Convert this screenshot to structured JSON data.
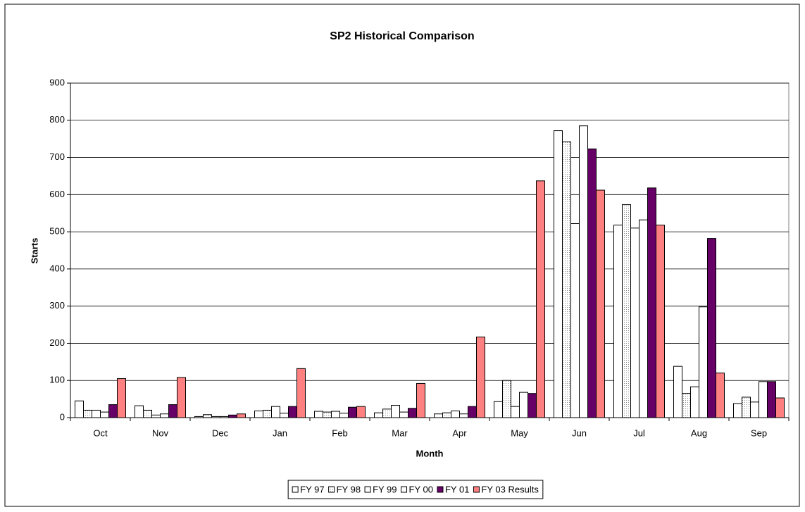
{
  "chart_data": {
    "type": "bar",
    "title": "SP2 Historical Comparison",
    "x_label": "Month",
    "y_label": "Starts",
    "categories": [
      "Oct",
      "Nov",
      "Dec",
      "Jan",
      "Feb",
      "Mar",
      "Apr",
      "May",
      "Jun",
      "Jul",
      "Aug",
      "Sep"
    ],
    "series": [
      {
        "name": "FY 97",
        "color": "#ffffff",
        "values": [
          45,
          32,
          3,
          18,
          17,
          13,
          10,
          43,
          772,
          518,
          138,
          38
        ]
      },
      {
        "name": "FY 98",
        "color": "#ffffff",
        "pattern": "dots",
        "values": [
          20,
          20,
          8,
          20,
          15,
          23,
          13,
          100,
          742,
          573,
          65,
          55
        ]
      },
      {
        "name": "FY 99",
        "color": "#ffffff",
        "values": [
          20,
          7,
          3,
          30,
          17,
          33,
          18,
          30,
          522,
          510,
          83,
          42
        ]
      },
      {
        "name": "FY 00",
        "color": "#ffffff",
        "values": [
          15,
          10,
          3,
          12,
          12,
          15,
          10,
          68,
          785,
          532,
          298,
          97
        ]
      },
      {
        "name": "FY 01",
        "color": "#660066",
        "values": [
          35,
          35,
          7,
          30,
          28,
          25,
          30,
          65,
          723,
          618,
          482,
          97
        ]
      },
      {
        "name": "FY 03 Results",
        "color": "#ff8080",
        "values": [
          105,
          108,
          10,
          132,
          30,
          92,
          217,
          637,
          612,
          518,
          120,
          53
        ]
      }
    ],
    "ylim": [
      0,
      900
    ],
    "yticks": [
      0,
      100,
      200,
      300,
      400,
      500,
      600,
      700,
      800,
      900
    ],
    "grid": true,
    "legend": "bottom"
  }
}
